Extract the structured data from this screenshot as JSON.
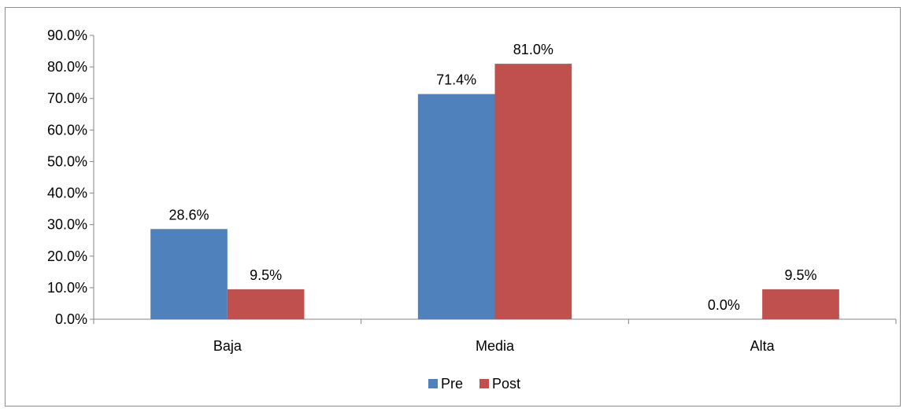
{
  "chart_data": {
    "type": "bar",
    "categories": [
      "Baja",
      "Media",
      "Alta"
    ],
    "series": [
      {
        "name": "Pre",
        "values": [
          28.6,
          71.4,
          0.0
        ],
        "labels": [
          "28.6%",
          "71.4%",
          "0.0%"
        ],
        "color": "#4F81BD"
      },
      {
        "name": "Post",
        "values": [
          9.5,
          81.0,
          9.5
        ],
        "labels": [
          "9.5%",
          "81.0%",
          "9.5%"
        ],
        "color": "#C0504D"
      }
    ],
    "ylim": [
      0,
      90
    ],
    "yticks": [
      "0.0%",
      "10.0%",
      "20.0%",
      "30.0%",
      "40.0%",
      "50.0%",
      "60.0%",
      "70.0%",
      "80.0%",
      "90.0%"
    ],
    "grid": false,
    "legend_position": "bottom"
  }
}
